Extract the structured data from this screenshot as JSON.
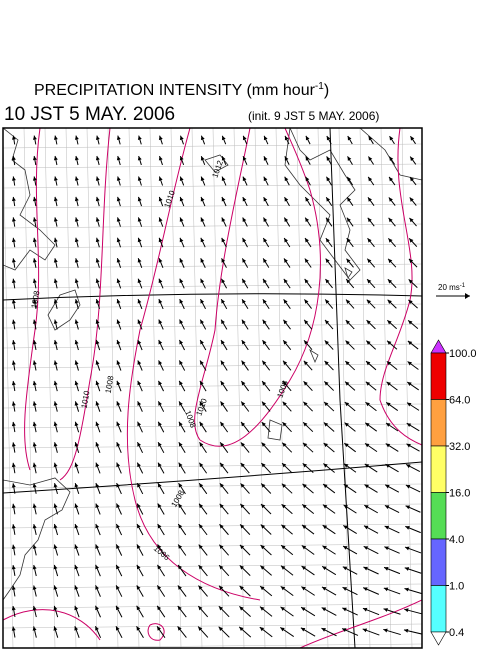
{
  "header": {
    "title": {
      "text": "PRECIPITATION INTENSITY (mm hour",
      "sup": "-1",
      "end": ")"
    },
    "valid_time": "10 JST 5 MAY. 2006",
    "init_time": "(init. 9 JST 5 MAY. 2006)"
  },
  "vector_legend": {
    "text": "20 ms",
    "sup": "-1"
  },
  "map": {
    "contour_labels": [
      "1012",
      "1010",
      "1008",
      "1010",
      "1008",
      "1008",
      "1010",
      "1008",
      "1008",
      "1006"
    ]
  },
  "colorbar": {
    "ticks": [
      {
        "value": 100,
        "label": "100.0"
      },
      {
        "value": 64,
        "label": "64.0"
      },
      {
        "value": 32,
        "label": "32.0"
      },
      {
        "value": 16,
        "label": "16.0"
      },
      {
        "value": 4,
        "label": "4.0"
      },
      {
        "value": 1,
        "label": "1.0"
      },
      {
        "value": 0.4,
        "label": "0.4"
      }
    ],
    "colors": [
      "#ee0000",
      "#ffa040",
      "#ffff66",
      "#55dd55",
      "#6666ff",
      "#55ffff"
    ],
    "over_color": "#cc33ff",
    "under_color": "#ffffff"
  }
}
